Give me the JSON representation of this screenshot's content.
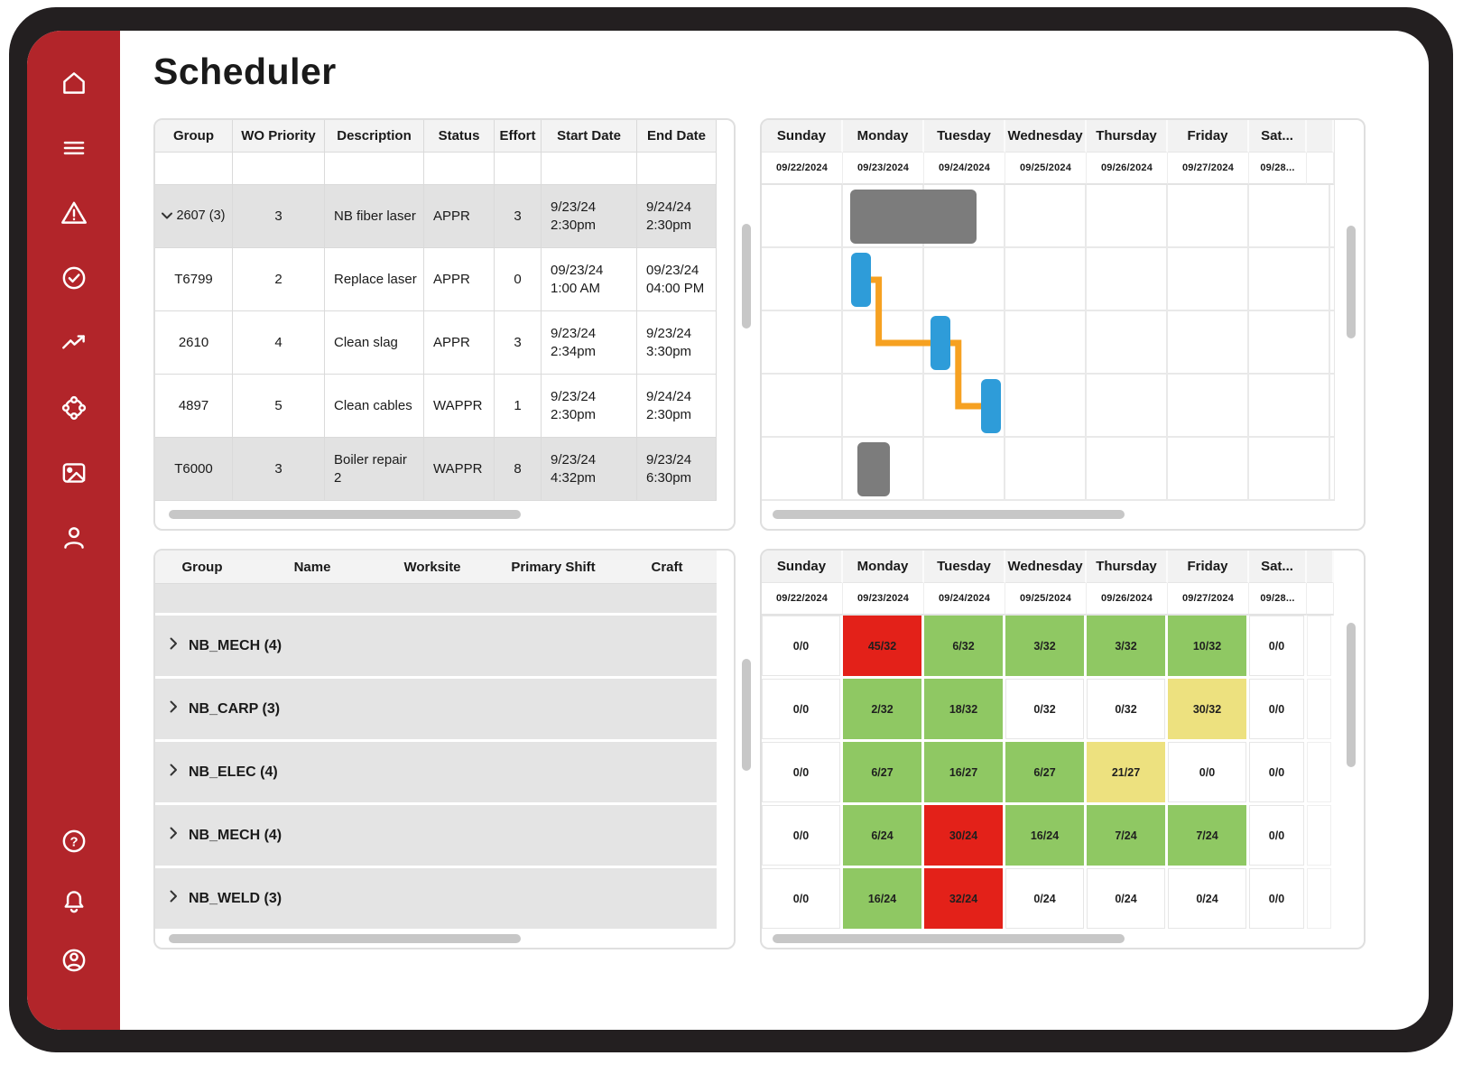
{
  "app": {
    "title": "Scheduler"
  },
  "sidebar": {
    "nav_icons": [
      {
        "name": "home-icon"
      },
      {
        "name": "menu-icon"
      },
      {
        "name": "alert-triangle-icon"
      },
      {
        "name": "check-circle-icon"
      },
      {
        "name": "trending-up-icon"
      },
      {
        "name": "network-icon"
      },
      {
        "name": "image-icon"
      },
      {
        "name": "user-icon"
      }
    ],
    "footer_icons": [
      {
        "name": "help-icon"
      },
      {
        "name": "bell-icon"
      },
      {
        "name": "account-icon"
      }
    ]
  },
  "work_orders": {
    "columns": [
      "Group",
      "WO Priority",
      "Description",
      "Status",
      "Effort",
      "Start Date",
      "End Date"
    ],
    "rows": [
      {
        "group": "2607 (3)",
        "priority": "3",
        "description": "NB fiber laser",
        "status": "APPR",
        "effort": "3",
        "start": "9/23/24 2:30pm",
        "end": "9/24/24 2:30pm"
      },
      {
        "group": "T6799",
        "priority": "2",
        "description": "Replace laser",
        "status": "APPR",
        "effort": "0",
        "start": "09/23/24 1:00 AM",
        "end": "09/23/24 04:00 PM"
      },
      {
        "group": "2610",
        "priority": "4",
        "description": "Clean slag",
        "status": "APPR",
        "effort": "3",
        "start": "9/23/24 2:34pm",
        "end": "9/23/24 3:30pm"
      },
      {
        "group": "4897",
        "priority": "5",
        "description": "Clean cables",
        "status": "WAPPR",
        "effort": "1",
        "start": "9/23/24 2:30pm",
        "end": "9/24/24 2:30pm"
      },
      {
        "group": "T6000",
        "priority": "3",
        "description": "Boiler repair 2",
        "status": "WAPPR",
        "effort": "8",
        "start": "9/23/24 4:32pm",
        "end": "9/23/24 6:30pm"
      }
    ]
  },
  "calendar": {
    "days": [
      "Sunday",
      "Monday",
      "Tuesday",
      "Wednesday",
      "Thursday",
      "Friday",
      "Sat..."
    ],
    "dates": [
      "09/22/2024",
      "09/23/2024",
      "09/24/2024",
      "09/25/2024",
      "09/26/2024",
      "09/27/2024",
      "09/28..."
    ]
  },
  "gantt": {
    "bars": [
      {
        "wo": "2607",
        "row": 0,
        "start": 1.09,
        "end": 2.65,
        "color": "gray"
      },
      {
        "wo": "T6799",
        "row": 1,
        "start": 1.1,
        "end": 1.34,
        "color": "blue"
      },
      {
        "wo": "2610",
        "row": 2,
        "start": 2.08,
        "end": 2.32,
        "color": "blue"
      },
      {
        "wo": "4897",
        "row": 3,
        "start": 2.7,
        "end": 2.94,
        "color": "blue"
      },
      {
        "wo": "T6000",
        "row": 4,
        "start": 1.18,
        "end": 1.58,
        "color": "gray"
      }
    ],
    "links": [
      {
        "from": 1,
        "to": 2
      },
      {
        "from": 2,
        "to": 3
      }
    ]
  },
  "resources": {
    "columns": [
      "Group",
      "Name",
      "Worksite",
      "Primary Shift",
      "Craft"
    ],
    "rows": [
      {
        "label": "NB_MECH (4)"
      },
      {
        "label": "NB_CARP (3)"
      },
      {
        "label": "NB_ELEC (4)"
      },
      {
        "label": "NB_MECH (4)"
      },
      {
        "label": "NB_WELD (3)"
      }
    ]
  },
  "capacity": {
    "rows": [
      {
        "cells": [
          {
            "v": "0/0",
            "level": "none"
          },
          {
            "v": "45/32",
            "level": "over"
          },
          {
            "v": "6/32",
            "level": "ok"
          },
          {
            "v": "3/32",
            "level": "ok"
          },
          {
            "v": "3/32",
            "level": "ok"
          },
          {
            "v": "10/32",
            "level": "ok"
          },
          {
            "v": "0/0",
            "level": "none"
          }
        ]
      },
      {
        "cells": [
          {
            "v": "0/0",
            "level": "none"
          },
          {
            "v": "2/32",
            "level": "ok"
          },
          {
            "v": "18/32",
            "level": "ok"
          },
          {
            "v": "0/32",
            "level": "none"
          },
          {
            "v": "0/32",
            "level": "none"
          },
          {
            "v": "30/32",
            "level": "warn"
          },
          {
            "v": "0/0",
            "level": "none"
          }
        ]
      },
      {
        "cells": [
          {
            "v": "0/0",
            "level": "none"
          },
          {
            "v": "6/27",
            "level": "ok"
          },
          {
            "v": "16/27",
            "level": "ok"
          },
          {
            "v": "6/27",
            "level": "ok"
          },
          {
            "v": "21/27",
            "level": "warn"
          },
          {
            "v": "0/0",
            "level": "none"
          },
          {
            "v": "0/0",
            "level": "none"
          }
        ]
      },
      {
        "cells": [
          {
            "v": "0/0",
            "level": "none"
          },
          {
            "v": "6/24",
            "level": "ok"
          },
          {
            "v": "30/24",
            "level": "over"
          },
          {
            "v": "16/24",
            "level": "ok"
          },
          {
            "v": "7/24",
            "level": "ok"
          },
          {
            "v": "7/24",
            "level": "ok"
          },
          {
            "v": "0/0",
            "level": "none"
          }
        ]
      },
      {
        "cells": [
          {
            "v": "0/0",
            "level": "none"
          },
          {
            "v": "16/24",
            "level": "ok"
          },
          {
            "v": "32/24",
            "level": "over"
          },
          {
            "v": "0/24",
            "level": "none"
          },
          {
            "v": "0/24",
            "level": "none"
          },
          {
            "v": "0/24",
            "level": "none"
          },
          {
            "v": "0/0",
            "level": "none"
          }
        ]
      }
    ]
  },
  "colors": {
    "sidebar-red": "#B2252A",
    "frame-black": "#231F20",
    "heat-ok": "#8FC863",
    "heat-warn": "#EDE17F",
    "heat-over": "#E32119",
    "bar-blue": "#2E9CD9",
    "bar-gray": "#7C7C7C",
    "link-orange": "#F6A121"
  }
}
